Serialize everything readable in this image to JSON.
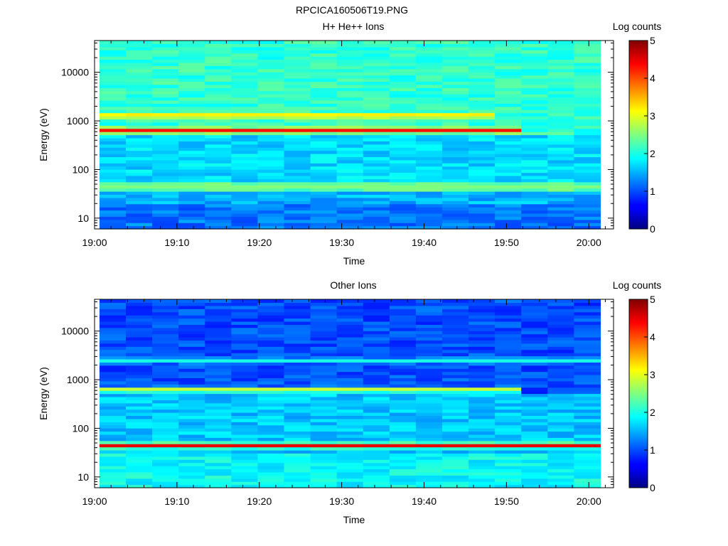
{
  "page_title": "RPCICA160506T19.PNG",
  "chart_data": [
    {
      "type": "heatmap",
      "title": "H+ He++ Ions",
      "xlabel": "Time",
      "ylabel": "Energy (eV)",
      "yscale": "log",
      "ylim": [
        6,
        45000
      ],
      "xlim": [
        "19:00",
        "20:03"
      ],
      "x_ticks": [
        "19:00",
        "19:10",
        "19:20",
        "19:30",
        "19:40",
        "19:50",
        "20:00"
      ],
      "y_ticks": [
        "10",
        "100",
        "1000",
        "10000"
      ],
      "colorbar": {
        "label": "Log counts",
        "range": [
          0,
          5
        ],
        "ticks": [
          "0",
          "1",
          "2",
          "3",
          "4",
          "5"
        ]
      },
      "time_bin_edges": [
        "19:00:36",
        "19:03:48",
        "19:07:00",
        "19:10:12",
        "19:13:24",
        "19:16:36",
        "19:19:48",
        "19:23:00",
        "19:26:12",
        "19:29:24",
        "19:32:36",
        "19:35:48",
        "19:39:00",
        "19:42:12",
        "19:45:24",
        "19:48:36",
        "19:51:48",
        "19:55:00",
        "19:58:12",
        "20:01:24"
      ],
      "background_log_counts_by_energy": [
        {
          "energy_range_eV": [
            6,
            20
          ],
          "log_counts": 1.2
        },
        {
          "energy_range_eV": [
            20,
            35
          ],
          "log_counts": 1.5
        },
        {
          "energy_range_eV": [
            35,
            55
          ],
          "log_counts": 2.3
        },
        {
          "energy_range_eV": [
            55,
            500
          ],
          "log_counts": 1.7
        },
        {
          "energy_range_eV": [
            500,
            45000
          ],
          "log_counts": 2.1
        }
      ],
      "bands": [
        {
          "energy_eV": 650,
          "log_counts": 4.3,
          "ends_after_bin": 15
        },
        {
          "energy_eV": 1300,
          "log_counts": 3.4,
          "ends_after_bin": 14
        },
        {
          "energy_eV": 45,
          "log_counts": 2.5,
          "ends_after_bin": 18
        }
      ]
    },
    {
      "type": "heatmap",
      "title": "Other Ions",
      "xlabel": "Time",
      "ylabel": "Energy (eV)",
      "yscale": "log",
      "ylim": [
        6,
        45000
      ],
      "xlim": [
        "19:00",
        "20:03"
      ],
      "x_ticks": [
        "19:00",
        "19:10",
        "19:20",
        "19:30",
        "19:40",
        "19:50",
        "20:00"
      ],
      "y_ticks": [
        "10",
        "100",
        "1000",
        "10000"
      ],
      "colorbar": {
        "label": "Log counts",
        "range": [
          0,
          5
        ],
        "ticks": [
          "0",
          "1",
          "2",
          "3",
          "4",
          "5"
        ]
      },
      "time_bin_edges": [
        "19:00:36",
        "19:03:48",
        "19:07:00",
        "19:10:12",
        "19:13:24",
        "19:16:36",
        "19:19:48",
        "19:23:00",
        "19:26:12",
        "19:29:24",
        "19:32:36",
        "19:35:48",
        "19:39:00",
        "19:42:12",
        "19:45:24",
        "19:48:36",
        "19:51:48",
        "19:55:00",
        "19:58:12",
        "20:01:24"
      ],
      "background_log_counts_by_energy": [
        {
          "energy_range_eV": [
            6,
            30
          ],
          "log_counts": 1.9
        },
        {
          "energy_range_eV": [
            30,
            500
          ],
          "log_counts": 1.6
        },
        {
          "energy_range_eV": [
            500,
            45000
          ],
          "log_counts": 1.0
        }
      ],
      "bands": [
        {
          "energy_eV": 45,
          "log_counts": 4.5,
          "ends_after_bin": 18
        },
        {
          "energy_eV": 620,
          "log_counts": 3.2,
          "ends_after_bin": 15
        },
        {
          "energy_eV": 2500,
          "log_counts": 2.0,
          "ends_after_bin": 18
        }
      ]
    }
  ]
}
